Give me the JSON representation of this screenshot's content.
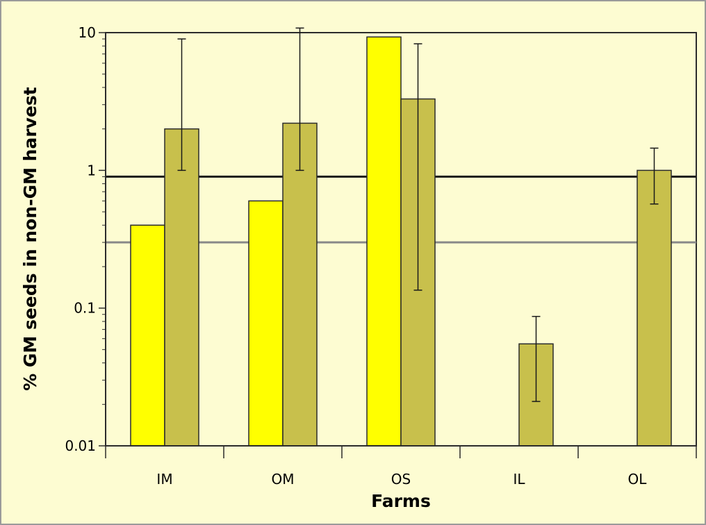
{
  "chart_data": {
    "type": "bar",
    "title": "",
    "xlabel": "Farms",
    "ylabel": "% GM seeds in non-GM harvest",
    "y_scale": "log",
    "ylim": [
      0.01,
      10
    ],
    "y_ticks": [
      {
        "value": 0.01,
        "label": "0.01"
      },
      {
        "value": 0.1,
        "label": "0.1"
      },
      {
        "value": 1,
        "label": "1"
      },
      {
        "value": 10,
        "label": "10"
      }
    ],
    "categories": [
      "IM",
      "OM",
      "OS",
      "IL",
      "OL"
    ],
    "series": [
      {
        "color": "#ffff00",
        "values": [
          0.4,
          0.6,
          9.3,
          null,
          null
        ]
      },
      {
        "color": "#c8c04c",
        "values": [
          2.0,
          2.2,
          3.3,
          0.055,
          1.0
        ],
        "error_low": [
          1.0,
          1.0,
          0.135,
          0.021,
          0.57
        ],
        "error_high": [
          9.0,
          10.8,
          8.3,
          0.087,
          1.45
        ]
      }
    ],
    "reference_lines": [
      {
        "value": 0.9,
        "color": "#1a1a1a"
      },
      {
        "value": 0.3,
        "color": "#888888"
      }
    ],
    "grid": false,
    "legend": "none"
  }
}
